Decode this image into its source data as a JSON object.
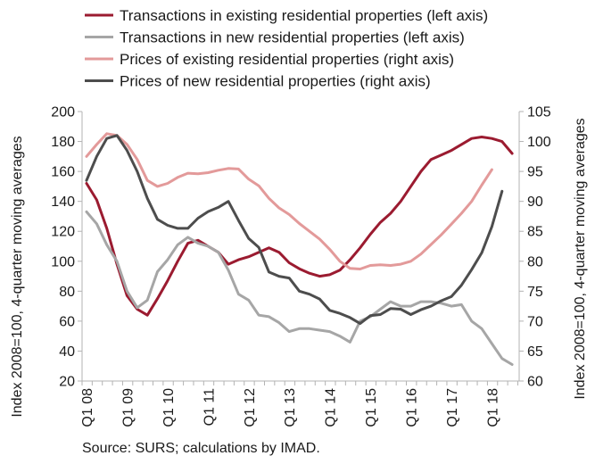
{
  "chart_data": {
    "type": "line",
    "source": "Source: SURS; calculations by IMAD.",
    "ylabel_left": "Index 2008=100, 4-quarter moving averages",
    "ylabel_right": "Index 2008=100, 4-quarter moving averages",
    "ylim_left": [
      20,
      200
    ],
    "ylim_right": [
      60,
      105
    ],
    "yticks_left": [
      20,
      40,
      60,
      80,
      100,
      120,
      140,
      160,
      180,
      200
    ],
    "yticks_right": [
      60,
      65,
      70,
      75,
      80,
      85,
      90,
      95,
      100,
      105
    ],
    "x_start": "Q1 08",
    "x_ticks": [
      "Q1 08",
      "Q1 09",
      "Q1 10",
      "Q1 11",
      "Q1 12",
      "Q1 13",
      "Q1 14",
      "Q1 15",
      "Q1 16",
      "Q1 17",
      "Q1 18"
    ],
    "grid": false,
    "legend_position": "top",
    "series": [
      {
        "name": "Transactions in existing residential properties (left axis)",
        "axis": "left",
        "color": "#9b1b30",
        "values": [
          152,
          141,
          122,
          98,
          77,
          68,
          64,
          75,
          87,
          100,
          112,
          114,
          110,
          106,
          98,
          101,
          103,
          106,
          109,
          106,
          99,
          95,
          92,
          90,
          91,
          94,
          101,
          109,
          118,
          126,
          132,
          140,
          150,
          160,
          168,
          171,
          174,
          178,
          182,
          183,
          182,
          180,
          172
        ]
      },
      {
        "name": "Transactions in new residential properties (left axis)",
        "axis": "left",
        "color": "#a6a6a6",
        "values": [
          133,
          125,
          111,
          100,
          80,
          69,
          74,
          93,
          101,
          111,
          116,
          112,
          110,
          106,
          94,
          78,
          74,
          64,
          63,
          59,
          53,
          55,
          55,
          54,
          53,
          50,
          46,
          60,
          63,
          68,
          73,
          70,
          70,
          73,
          73,
          72,
          70,
          71,
          60,
          55,
          45,
          35,
          31
        ]
      },
      {
        "name": "Prices of existing residential properties (right axis)",
        "axis": "right",
        "color": "#e39a9a",
        "values": [
          97.5,
          99.5,
          101.3,
          101,
          99.5,
          97,
          93.5,
          92.5,
          93,
          94,
          94.7,
          94.6,
          94.8,
          95.2,
          95.5,
          95.4,
          93.7,
          92.6,
          90.5,
          88.9,
          87.8,
          86.3,
          85,
          83.7,
          82,
          80,
          78.8,
          78.7,
          79.3,
          79.4,
          79.3,
          79.5,
          80,
          81.2,
          82.8,
          84.4,
          86.2,
          88,
          90,
          92.7,
          95.3
        ]
      },
      {
        "name": "Prices of new residential properties (right axis)",
        "axis": "right",
        "color": "#4d4d4d",
        "values": [
          93.5,
          97.5,
          100.5,
          101,
          98.5,
          95,
          90.5,
          87,
          86,
          85.5,
          85.5,
          87.2,
          88.3,
          89,
          90,
          86.8,
          83.8,
          82.3,
          78.2,
          77.5,
          77.2,
          75,
          74.5,
          73.7,
          71.8,
          71.3,
          70.6,
          69.6,
          70.9,
          71.1,
          72.1,
          72,
          71.1,
          71.9,
          72.5,
          73.4,
          74.1,
          76,
          78.6,
          81.4,
          85.8,
          91.7
        ]
      }
    ]
  }
}
